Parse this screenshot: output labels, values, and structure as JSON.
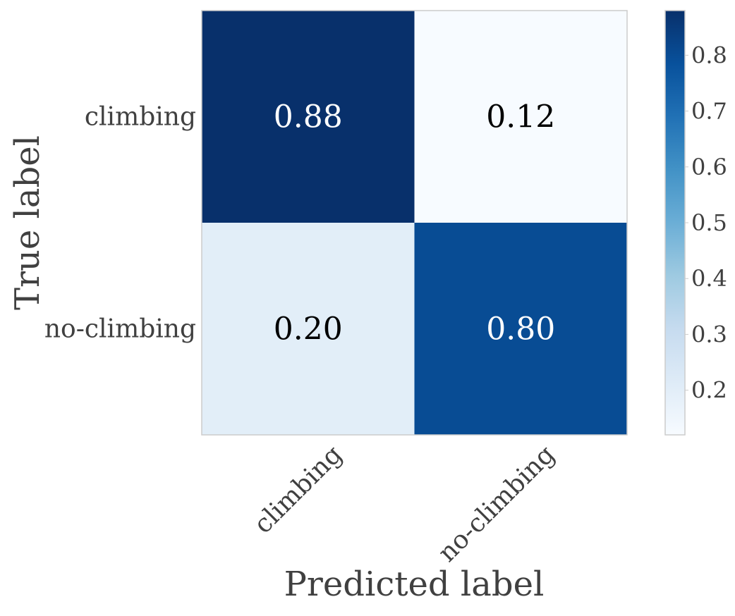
{
  "chart_data": {
    "type": "heatmap",
    "title": "",
    "xlabel": "Predicted label",
    "ylabel": "True label",
    "x_categories": [
      "climbing",
      "no-climbing"
    ],
    "y_categories": [
      "climbing",
      "no-climbing"
    ],
    "values": [
      [
        0.88,
        0.12
      ],
      [
        0.2,
        0.8
      ]
    ],
    "value_labels": [
      [
        "0.88",
        "0.12"
      ],
      [
        "0.20",
        "0.80"
      ]
    ],
    "colormap": "Blues",
    "colorbar": {
      "min": 0.12,
      "max": 0.88,
      "ticks": [
        0.2,
        0.3,
        0.4,
        0.5,
        0.6,
        0.7,
        0.8
      ],
      "tick_labels": [
        "0.2",
        "0.3",
        "0.4",
        "0.5",
        "0.6",
        "0.7",
        "0.8"
      ]
    },
    "grid": false
  }
}
